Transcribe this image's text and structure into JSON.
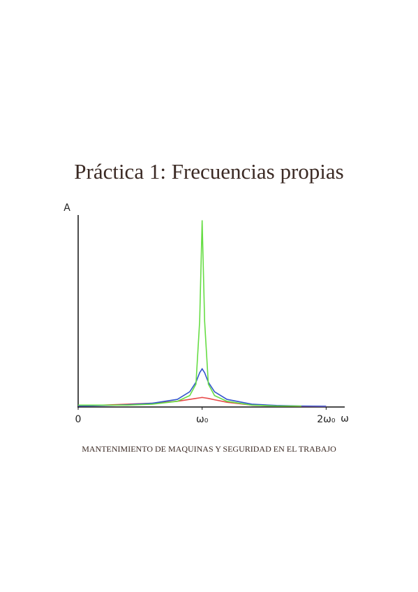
{
  "title": "Práctica 1: Frecuencias propias",
  "chart_data": {
    "type": "line",
    "ylabel": "A",
    "xlabel": "ω",
    "x": [
      0,
      0.2,
      0.4,
      0.6,
      0.8,
      0.9,
      0.95,
      0.98,
      1,
      1.02,
      1.05,
      1.1,
      1.2,
      1.4,
      1.6,
      1.8,
      2.0
    ],
    "series": [
      {
        "color": "#e84848",
        "values": [
          0.005,
          0.01,
          0.015,
          0.02,
          0.03,
          0.04,
          0.045,
          0.048,
          0.05,
          0.048,
          0.045,
          0.038,
          0.025,
          0.01,
          0.006,
          0.004,
          0.003
        ]
      },
      {
        "color": "#3355cc",
        "values": [
          0.005,
          0.008,
          0.012,
          0.02,
          0.04,
          0.08,
          0.13,
          0.18,
          0.2,
          0.18,
          0.13,
          0.08,
          0.04,
          0.015,
          0.008,
          0.005,
          0.004
        ]
      },
      {
        "color": "#66dd44",
        "values": [
          0.01,
          0.01,
          0.01,
          0.015,
          0.03,
          0.06,
          0.12,
          0.45,
          0.98,
          0.45,
          0.12,
          0.06,
          0.03,
          0.01,
          0.005,
          0.005,
          null
        ]
      }
    ],
    "xlim": [
      0,
      2.15
    ],
    "ylim": [
      0,
      1
    ],
    "xticks": [
      0,
      {
        "value": 1,
        "label": "ω₀"
      },
      {
        "value": 2,
        "label": "2ω₀"
      }
    ]
  },
  "footer": "MANTENIMIENTO DE MAQUINAS Y SEGURIDAD EN EL TRABAJO"
}
